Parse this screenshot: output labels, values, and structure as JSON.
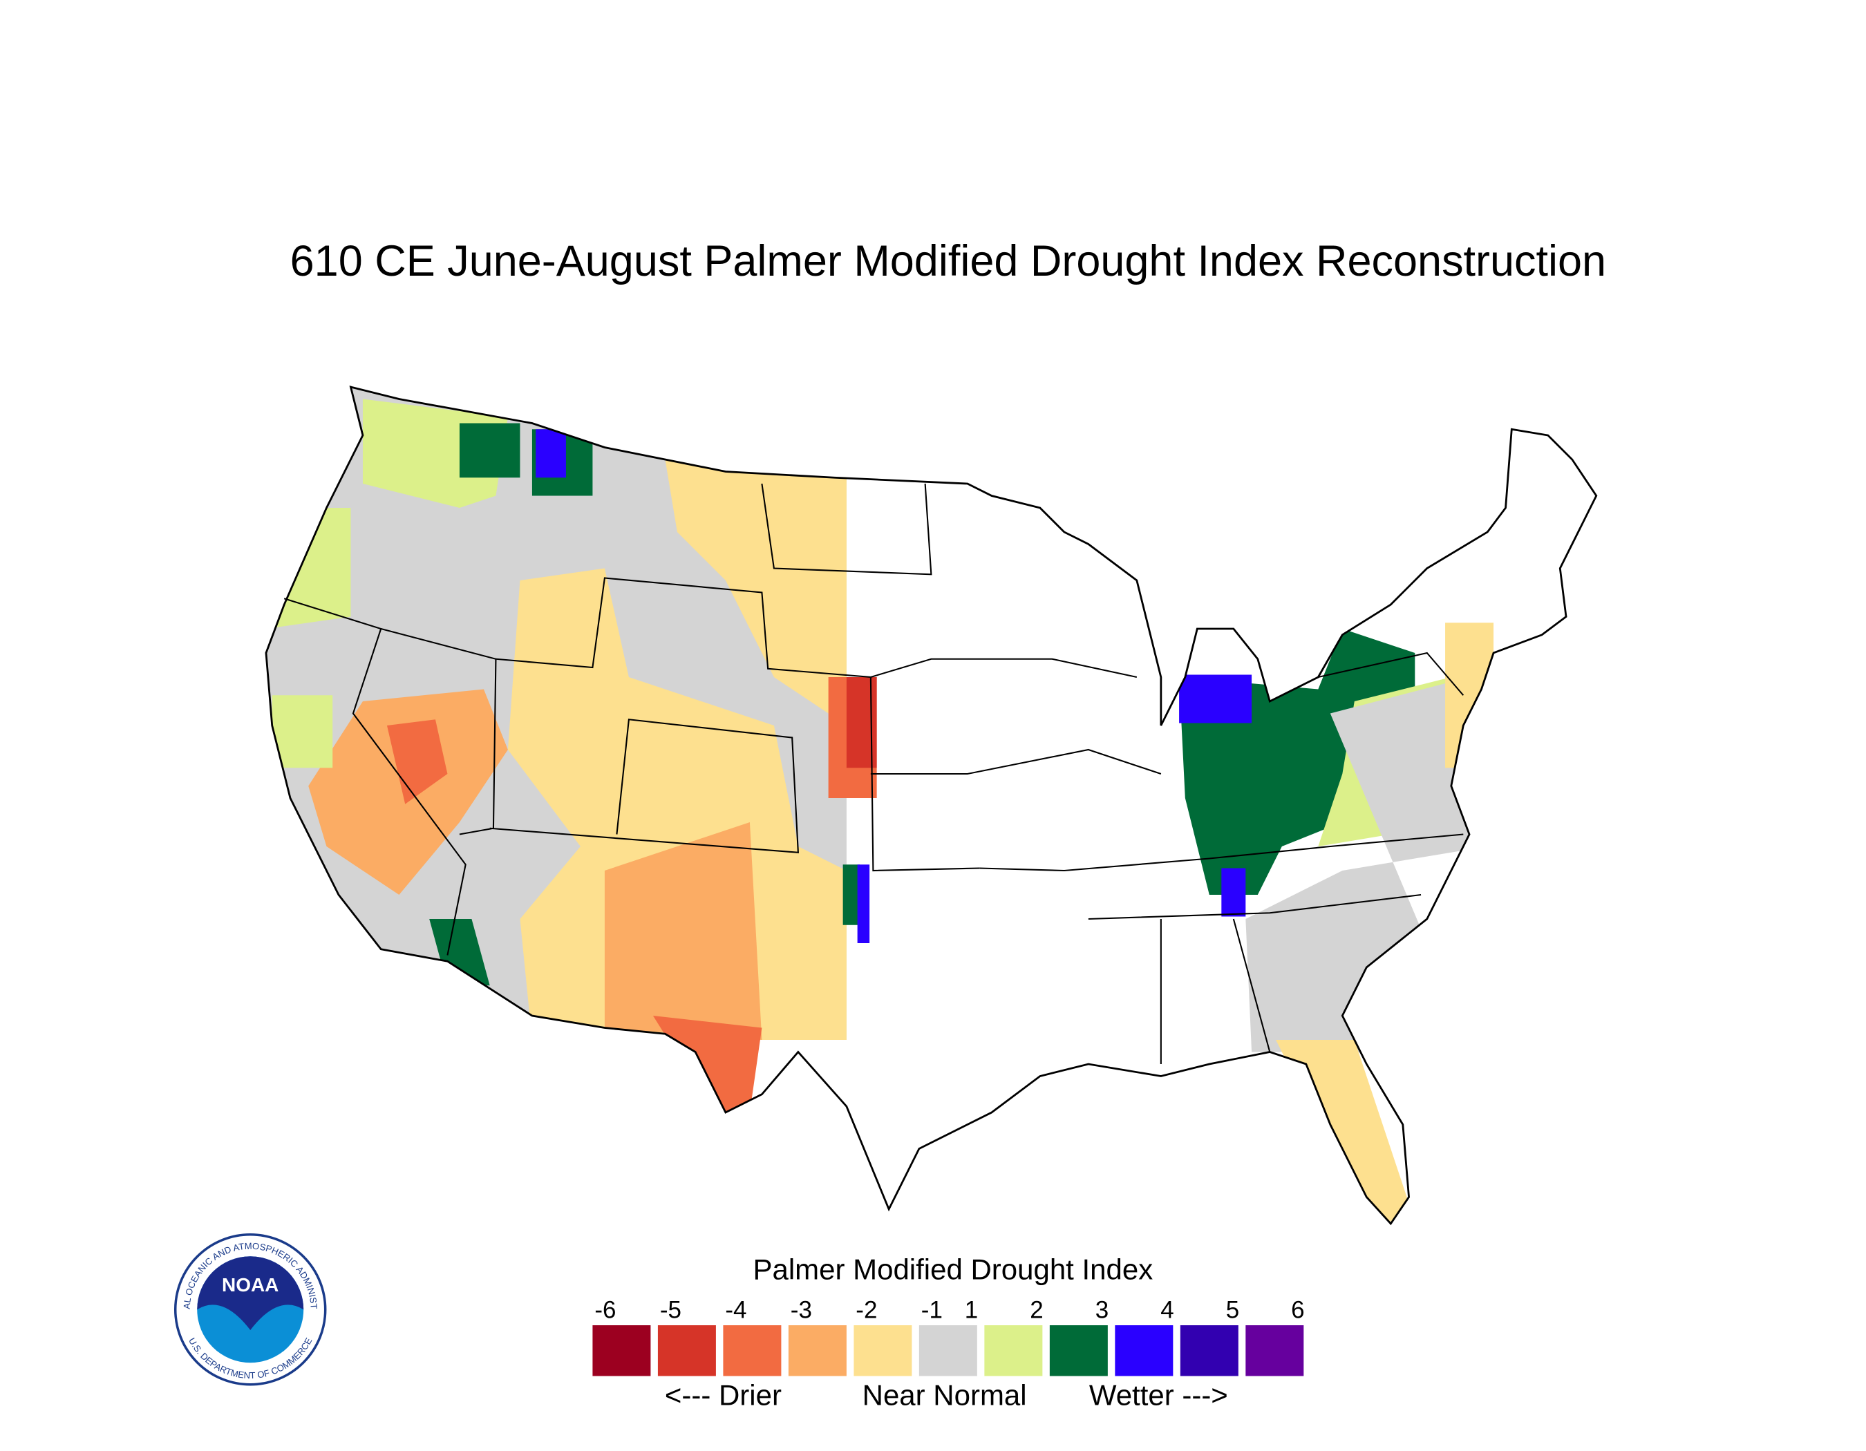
{
  "title": "610 CE  June-August  Palmer Modified Drought Index Reconstruction",
  "logo": {
    "text": "NOAA",
    "ring_top": "NATIONAL OCEANIC AND ATMOSPHERIC ADMINISTRATION",
    "ring_bottom": "U.S. DEPARTMENT OF COMMERCE"
  },
  "legend": {
    "title": "Palmer Modified Drought Index",
    "ticks": [
      -6,
      -5,
      -4,
      -3,
      -2,
      -1,
      1,
      2,
      3,
      4,
      5,
      6
    ],
    "colors": [
      "#9c0020",
      "#d63428",
      "#f26b41",
      "#fbac64",
      "#fde08f",
      "#d4d4d4",
      "#dcf08a",
      "#006b38",
      "#2a00ff",
      "#3200b0",
      "#66009e"
    ],
    "labels": [
      "<--- Drier",
      "Near Normal",
      "Wetter --->"
    ]
  }
}
